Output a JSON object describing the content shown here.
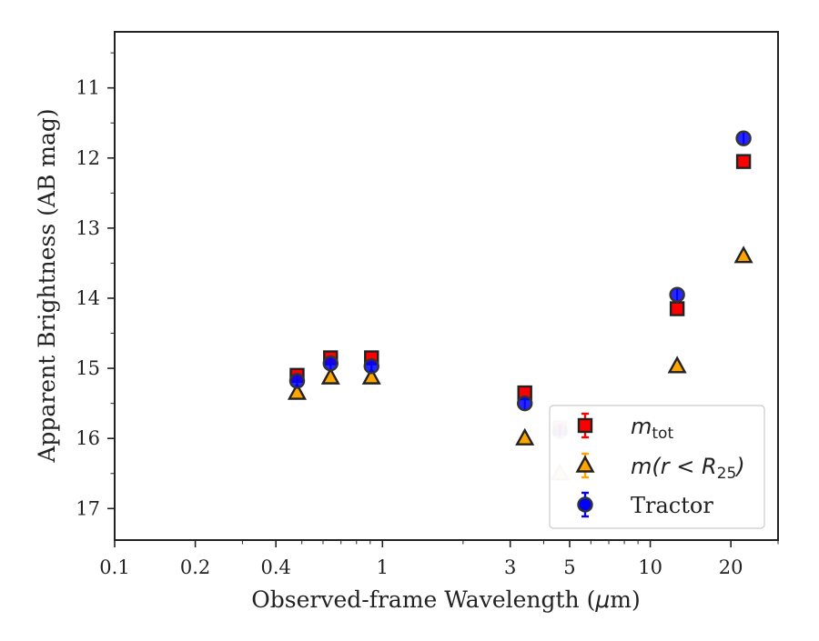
{
  "chart_data": {
    "type": "scatter",
    "xlabel": "Observed-frame Wavelength (μm)",
    "xlabel_parts": {
      "before": "Observed-frame Wavelength (",
      "mu": "μ",
      "unit": "m)"
    },
    "ylabel": "Apparent Brightness (AB mag)",
    "x_scale": "log",
    "xlim": [
      0.1,
      30
    ],
    "ylim": [
      17.45,
      10.2
    ],
    "y_inverted": true,
    "grid": false,
    "legend_position": "lower-right",
    "x_ticks": [
      {
        "value": 0.1,
        "label": "0.1"
      },
      {
        "value": 0.2,
        "label": "0.2"
      },
      {
        "value": 0.4,
        "label": "0.4"
      },
      {
        "value": 1,
        "label": "1"
      },
      {
        "value": 3,
        "label": "3"
      },
      {
        "value": 5,
        "label": "5"
      },
      {
        "value": 10,
        "label": "10"
      },
      {
        "value": 20,
        "label": "20"
      }
    ],
    "y_ticks": [
      {
        "value": 11,
        "label": "11"
      },
      {
        "value": 12,
        "label": "12"
      },
      {
        "value": 13,
        "label": "13"
      },
      {
        "value": 14,
        "label": "14"
      },
      {
        "value": 15,
        "label": "15"
      },
      {
        "value": 16,
        "label": "16"
      },
      {
        "value": 17,
        "label": "17"
      }
    ],
    "series": [
      {
        "name": "m_tot",
        "legend": {
          "italic": "m",
          "sub": "tot"
        },
        "marker": "square",
        "color": "#ff0000",
        "edge_color": "#222222",
        "points": [
          {
            "x": 0.48,
            "y": 15.1
          },
          {
            "x": 0.64,
            "y": 14.85
          },
          {
            "x": 0.91,
            "y": 14.85
          },
          {
            "x": 3.4,
            "y": 15.35
          },
          {
            "x": 4.6,
            "y": 15.85,
            "faded": true
          },
          {
            "x": 12.6,
            "y": 14.15
          },
          {
            "x": 22.3,
            "y": 12.05
          }
        ]
      },
      {
        "name": "m(r < R_25)",
        "legend": {
          "prefix": "m(r < R",
          "sub": "25",
          "suffix": ")"
        },
        "marker": "triangle",
        "color": "#ffa500",
        "edge_color": "#222222",
        "points": [
          {
            "x": 0.48,
            "y": 15.35
          },
          {
            "x": 0.64,
            "y": 15.13
          },
          {
            "x": 0.91,
            "y": 15.13
          },
          {
            "x": 3.4,
            "y": 16.0
          },
          {
            "x": 4.6,
            "y": 16.5,
            "faded": true
          },
          {
            "x": 12.6,
            "y": 14.97
          },
          {
            "x": 22.3,
            "y": 13.4
          }
        ]
      },
      {
        "name": "Tractor",
        "legend": {
          "text": "Tractor"
        },
        "marker": "circle",
        "color": "#0000ff",
        "edge_color": "#333333",
        "points": [
          {
            "x": 0.48,
            "y": 15.18
          },
          {
            "x": 0.64,
            "y": 14.93
          },
          {
            "x": 0.91,
            "y": 14.97
          },
          {
            "x": 3.4,
            "y": 15.5
          },
          {
            "x": 4.6,
            "y": 15.9,
            "faded": true
          },
          {
            "x": 12.6,
            "y": 13.95
          },
          {
            "x": 22.3,
            "y": 11.72
          }
        ]
      }
    ]
  }
}
